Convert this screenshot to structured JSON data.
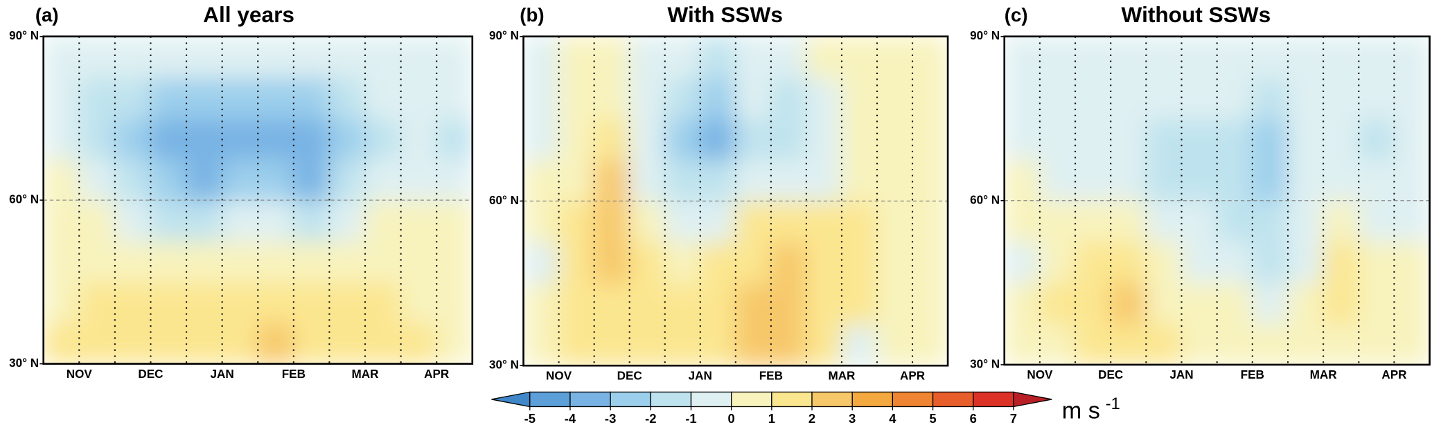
{
  "chart_data": [
    {
      "type": "contour",
      "panel_label": "(a)",
      "title": "All years",
      "categories": [
        "NOV",
        "DEC",
        "JAN",
        "FEB",
        "MAR",
        "APR"
      ],
      "ylim": [
        30,
        90
      ],
      "yticks": [
        {
          "value": 30,
          "label": "30° N"
        },
        {
          "value": 60,
          "label": "60° N"
        },
        {
          "value": 90,
          "label": "90° N"
        }
      ],
      "lat": [
        33.75,
        41.25,
        48.75,
        56.25,
        63.75,
        71.25,
        78.75,
        86.25
      ],
      "field": [
        [
          1,
          1,
          1.5,
          1.5,
          1.5,
          1.5,
          2,
          1,
          1,
          1,
          1,
          0.5
        ],
        [
          0.5,
          1,
          1,
          1,
          1,
          1,
          1,
          1,
          1,
          1,
          0.5,
          0.5
        ],
        [
          0.5,
          0.5,
          0.5,
          0.5,
          0.5,
          0.5,
          0.5,
          0.5,
          0.5,
          0.5,
          0.5,
          0.5
        ],
        [
          0.5,
          0.5,
          -0.5,
          -1.5,
          -1.5,
          -0.5,
          -1,
          -1.5,
          -0.5,
          0.5,
          0.5,
          0.5
        ],
        [
          0.5,
          -0.5,
          -1.5,
          -2.5,
          -3.5,
          -2.5,
          -3,
          -3.5,
          -2,
          -1,
          -0.5,
          -0.5
        ],
        [
          -0.5,
          -1.5,
          -2.5,
          -3.5,
          -3.5,
          -3.5,
          -3.5,
          -3.5,
          -2.5,
          -1.5,
          -1,
          -1.5
        ],
        [
          -0.5,
          -1.5,
          -2,
          -2.5,
          -2.5,
          -2.5,
          -2.5,
          -2.5,
          -2,
          -1,
          -0.5,
          -1
        ],
        [
          -0.5,
          -0.5,
          -1,
          -1,
          -1,
          -1,
          -1,
          -1,
          -1,
          -0.5,
          -0.5,
          -0.5
        ]
      ]
    },
    {
      "type": "contour",
      "panel_label": "(b)",
      "title": "With SSWs",
      "categories": [
        "NOV",
        "DEC",
        "JAN",
        "FEB",
        "MAR",
        "APR"
      ],
      "ylim": [
        30,
        90
      ],
      "yticks": [
        {
          "value": 30,
          "label": "30° N"
        },
        {
          "value": 60,
          "label": "60° N"
        },
        {
          "value": 90,
          "label": "90° N"
        }
      ],
      "lat": [
        33.75,
        41.25,
        48.75,
        56.25,
        63.75,
        71.25,
        78.75,
        86.25
      ],
      "field": [
        [
          0.5,
          1,
          1.5,
          1,
          1,
          1.5,
          2.5,
          2,
          1,
          -0.5,
          0.5,
          0.5
        ],
        [
          0.5,
          1,
          1.5,
          1,
          1,
          1.5,
          2.5,
          2.5,
          1.5,
          1,
          0.5,
          0.5
        ],
        [
          -0.5,
          1,
          2,
          1,
          0.5,
          1,
          1.5,
          2,
          1.5,
          1,
          0.5,
          0.5
        ],
        [
          0.5,
          1,
          2,
          0.5,
          -0.5,
          -1,
          1,
          1.5,
          1,
          1,
          0.5,
          0.5
        ],
        [
          0.5,
          0.5,
          2,
          -0.5,
          -1.5,
          -2,
          -1,
          -0.5,
          -0.5,
          0.5,
          0.5,
          0.5
        ],
        [
          -0.5,
          0.5,
          1,
          -1,
          -2.5,
          -3.5,
          -1.5,
          -2,
          -0.5,
          0.5,
          0.5,
          0.5
        ],
        [
          -0.5,
          0.5,
          0.5,
          -1,
          -2,
          -2.5,
          -1,
          -1.5,
          -0.5,
          0.5,
          0.5,
          0.5
        ],
        [
          -0.5,
          0.5,
          0.5,
          -0.5,
          -1,
          -1.5,
          -0.5,
          -0.5,
          0.5,
          0.5,
          0.5,
          0.5
        ]
      ]
    },
    {
      "type": "contour",
      "panel_label": "(c)",
      "title": "Without SSWs",
      "categories": [
        "NOV",
        "DEC",
        "JAN",
        "FEB",
        "MAR",
        "APR"
      ],
      "ylim": [
        30,
        90
      ],
      "yticks": [
        {
          "value": 30,
          "label": "30° N"
        },
        {
          "value": 60,
          "label": "60° N"
        },
        {
          "value": 90,
          "label": "90° N"
        }
      ],
      "lat": [
        33.75,
        41.25,
        48.75,
        56.25,
        63.75,
        71.25,
        78.75,
        86.25
      ],
      "field": [
        [
          0.5,
          0.5,
          1,
          1.5,
          1,
          0.5,
          0.5,
          0.5,
          0.5,
          0.5,
          0.5,
          0.5
        ],
        [
          0.5,
          1,
          1.5,
          2,
          0.5,
          0.5,
          0.5,
          -0.5,
          0.5,
          1,
          0.5,
          0.5
        ],
        [
          -0.5,
          0.5,
          1,
          1.5,
          0.5,
          -0.5,
          -0.5,
          -1.5,
          -0.5,
          1,
          0.5,
          0.5
        ],
        [
          0.5,
          0.5,
          0.5,
          0.5,
          -0.5,
          -1,
          -1.5,
          -2,
          -0.5,
          0.5,
          -0.5,
          -0.5
        ],
        [
          0.5,
          -0.5,
          -0.5,
          -0.5,
          -1.5,
          -1.5,
          -2,
          -2.5,
          -1,
          -0.5,
          -1,
          -0.5
        ],
        [
          -0.5,
          -1,
          -1,
          -1,
          -1.5,
          -1.5,
          -2,
          -3,
          -1,
          -1,
          -1.5,
          -1
        ],
        [
          -0.5,
          -1,
          -0.5,
          -1,
          -0.5,
          -1,
          -1,
          -2,
          -1,
          -0.5,
          -1,
          -0.5
        ],
        [
          -0.5,
          -0.5,
          -0.5,
          -0.5,
          -0.5,
          -0.5,
          -0.5,
          -1,
          -0.5,
          -0.5,
          -0.5,
          -0.5
        ]
      ]
    },
    {
      "type": "colorbar",
      "levels": [
        -5,
        -4,
        -3,
        -2,
        -1,
        0,
        1,
        2,
        3,
        4,
        5,
        6,
        7
      ],
      "colors": [
        "#3f87c8",
        "#5c9fd9",
        "#78b3e4",
        "#9ccfec",
        "#bfe3ee",
        "#dff0f2",
        "#f8f3bd",
        "#fbe690",
        "#f7c86a",
        "#f4a840",
        "#ef8532",
        "#e85e2b",
        "#dc3126",
        "#b82026"
      ],
      "unit": "m s",
      "unit_exponent": "-1"
    }
  ]
}
